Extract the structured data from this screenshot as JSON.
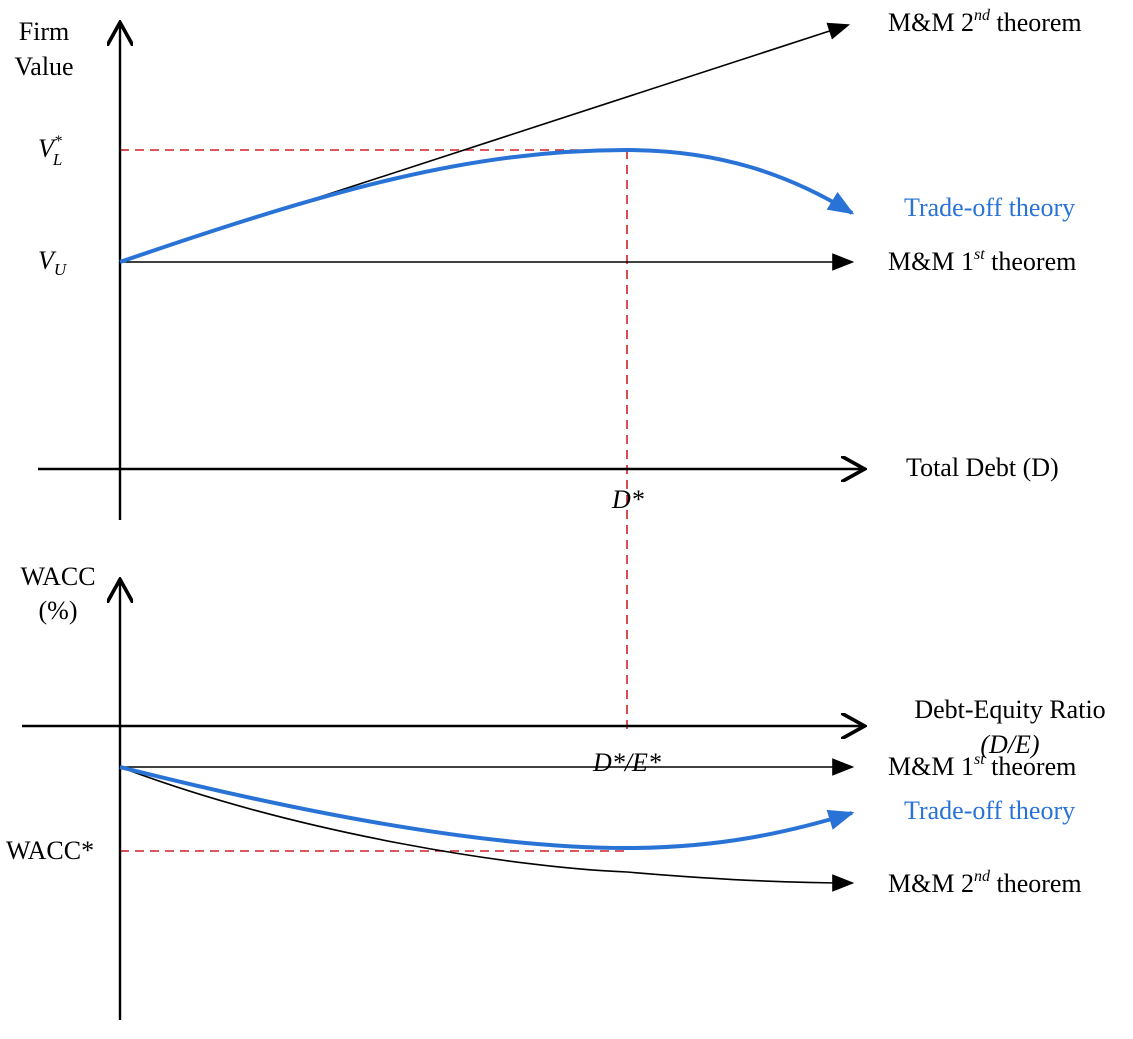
{
  "top_panel": {
    "y_axis_label_line1": "Firm",
    "y_axis_label_line2": "Value",
    "x_axis_label": "Total Debt (D)",
    "vl_star_main": "V",
    "vl_star_sub": "L",
    "vl_star_sup": "*",
    "vu_main": "V",
    "vu_sub": "U",
    "d_star": "D*",
    "mm2_prefix": "M&M 2",
    "mm2_sup": "nd",
    "mm2_suffix": " theorem",
    "tradeoff": "Trade-off theory",
    "mm1_prefix": "M&M 1",
    "mm1_sup": "st",
    "mm1_suffix": " theorem"
  },
  "bottom_panel": {
    "y_axis_label_line1": "WACC",
    "y_axis_label_line2": "(%)",
    "x_axis_label_line1": "Debt-Equity Ratio",
    "x_axis_label_line2": "(D/E)",
    "wacc_star": "WACC*",
    "de_star": "D*/E*",
    "mm1_prefix": "M&M 1",
    "mm1_sup": "st",
    "mm1_suffix": " theorem",
    "tradeoff": "Trade-off theory",
    "mm2_prefix": "M&M 2",
    "mm2_sup": "nd",
    "mm2_suffix": " theorem"
  },
  "colors": {
    "axis": "#000000",
    "tradeoff": "#2a73d6",
    "guide": "#d0202a"
  }
}
